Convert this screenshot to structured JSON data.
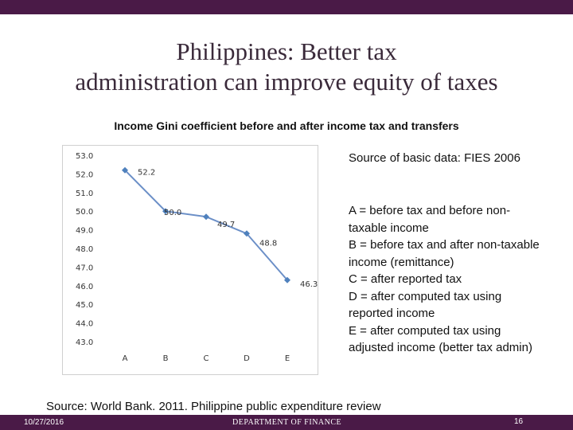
{
  "slide": {
    "title_line1": "Philippines: Better tax",
    "title_line2": "administration can improve equity of taxes",
    "basic_source": "Source of basic data: FIES 2006",
    "legend": [
      "A = before tax and before non-taxable income",
      "B = before tax and after non-taxable income (remittance)",
      "C = after reported tax",
      "D = after computed tax using reported income",
      "E = after computed tax using adjusted income (better tax admin)"
    ],
    "source": "Source: World Bank. 2011. Philippine public expenditure review",
    "footer": {
      "date": "10/27/2016",
      "department": "DEPARTMENT OF FINANCE",
      "page": "16"
    },
    "colors": {
      "bar": "#4a1a47",
      "line": "#6b8fc7",
      "marker": "#4f81bd"
    }
  },
  "chart_data": {
    "type": "line",
    "title": "Income Gini coefficient before and after income tax and transfers",
    "categories": [
      "A",
      "B",
      "C",
      "D",
      "E"
    ],
    "series": [
      {
        "values": [
          52.2,
          50.0,
          49.7,
          48.8,
          46.3
        ]
      }
    ],
    "data_labels": [
      "52.2",
      "50.0",
      "49.7",
      "48.8",
      "46.3"
    ],
    "yticks": [
      "53.0",
      "52.0",
      "51.0",
      "50.0",
      "49.0",
      "48.0",
      "47.0",
      "46.0",
      "45.0",
      "44.0",
      "43.0"
    ],
    "ylim": [
      43,
      53
    ],
    "grid": false,
    "legend": "none"
  }
}
